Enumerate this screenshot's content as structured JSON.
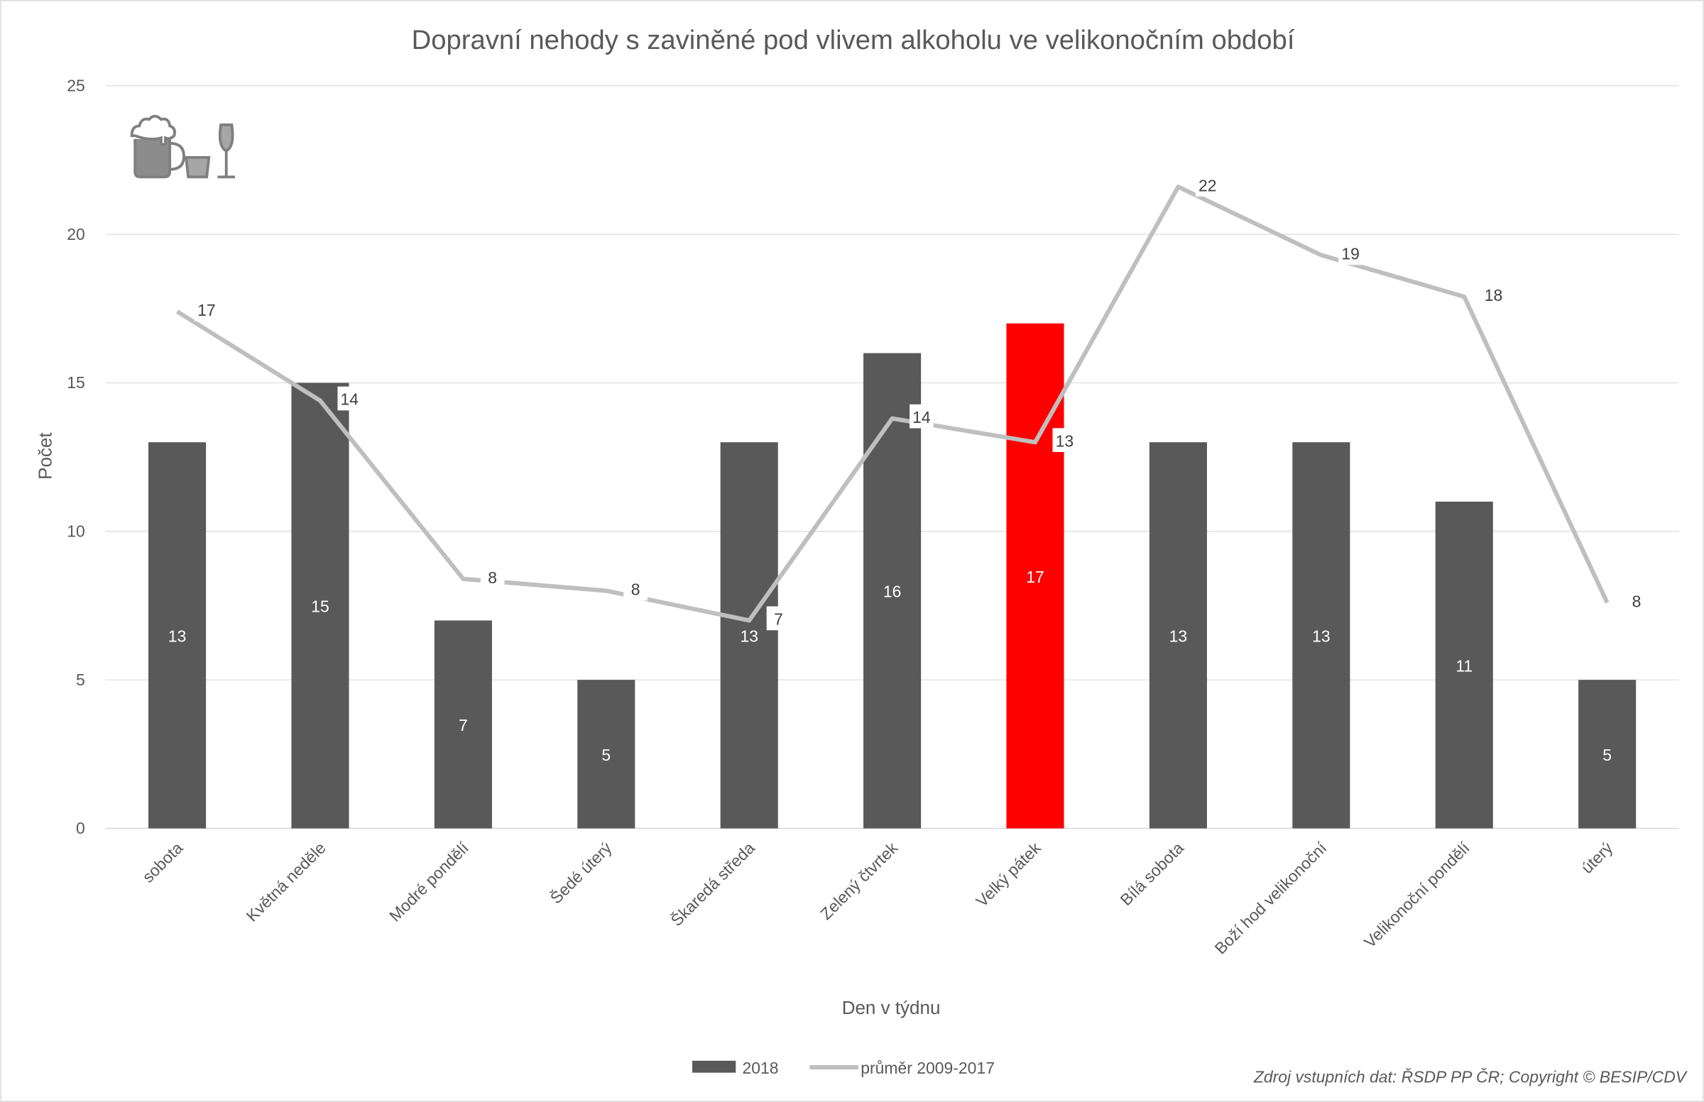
{
  "chart_data": {
    "type": "bar",
    "title": "Dopravní nehody s zaviněné pod vlivem alkoholu ve velikonočním období",
    "xlabel": "Den v týdnu",
    "ylabel": "Počet",
    "ylim": [
      0,
      25
    ],
    "yticks": [
      "0",
      "5",
      "10",
      "15",
      "20",
      "25"
    ],
    "grid": true,
    "legend_position": "bottom",
    "categories": [
      "sobota",
      "Květná neděle",
      "Modré pondělí",
      "Šedé úterý",
      "Škaredá středa",
      "Zelený čtvrtek",
      "Velký pátek",
      "Bílá sobota",
      "Boží hod velikonoční",
      "Velikonoční pondělí",
      "úterý"
    ],
    "series": [
      {
        "name": "2018",
        "kind": "bar",
        "color": "#595959",
        "highlight_color": "#ff0000",
        "highlight_category": "Velký pátek",
        "values": [
          13,
          15,
          7,
          5,
          13,
          16,
          17,
          13,
          13,
          11,
          5
        ],
        "labels": [
          "13",
          "15",
          "7",
          "5",
          "13",
          "16",
          "17",
          "13",
          "13",
          "11",
          "5"
        ]
      },
      {
        "name": "průměr 2009-2017",
        "kind": "line",
        "color": "#bfbfbf",
        "values": [
          17.4,
          14.4,
          8.4,
          8.0,
          7.0,
          13.8,
          13.0,
          21.6,
          19.3,
          17.9,
          7.6
        ],
        "labels": [
          "17",
          "14",
          "8",
          "8",
          "7",
          "14",
          "13",
          "22",
          "19",
          "18",
          "8"
        ]
      }
    ],
    "source": "Zdroj vstupních dat: ŘSDP PP ČR; Copyright © BESIP/CDV",
    "icon": "beer-mug-tumbler-wine-glass-icon"
  }
}
